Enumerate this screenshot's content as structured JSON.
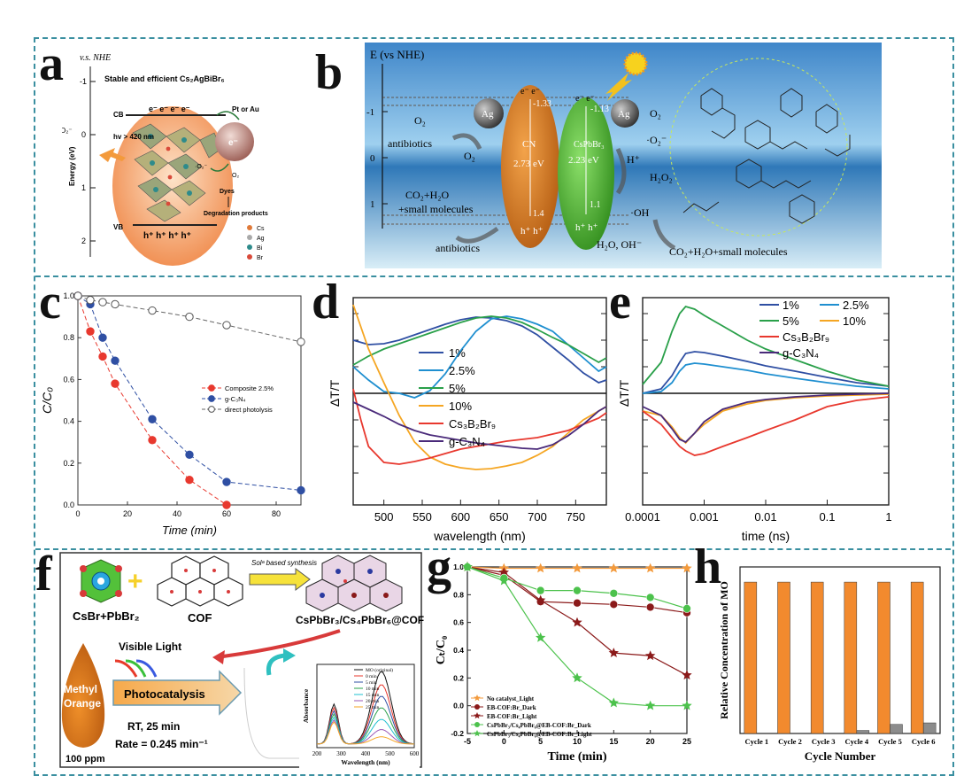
{
  "panel_labels": {
    "a": "a",
    "b": "b",
    "c": "c",
    "d": "d",
    "e": "e",
    "f": "f",
    "g": "g",
    "h": "h"
  },
  "panel_a": {
    "axis_title": "v.s. NHE",
    "ylabel": "Energy (eV)",
    "ticks": [
      "-1",
      "0",
      "1",
      "2"
    ],
    "title": "Stable and efficient Cs₂AgBiBr₆",
    "cb": "CB",
    "vb": "VB",
    "electrons": "e⁻ e⁻ e⁻ e⁻",
    "holes": "h⁺ h⁺ h⁺ h⁺",
    "o2_label": "O₂→·O₂⁻",
    "hv": "hv > 420 nm",
    "metal": "Pt or Au",
    "e_label": "e⁻",
    "o2_small": "·O₂⁻",
    "o2_sub": "O₂",
    "dyes": "Dyes",
    "products": "Degradation products",
    "legend": [
      "Cs",
      "Ag",
      "Bi",
      "Br"
    ],
    "legend_colors": [
      "#e07a3a",
      "#a9a9a9",
      "#2e8b8b",
      "#d94a3a"
    ]
  },
  "panel_b": {
    "axis_title": "E (vs NHE)",
    "ticks": [
      "-1",
      "0",
      "1"
    ],
    "o2_left": "O₂",
    "antibiotics1": "antibiotics",
    "o2_mid": "O₂",
    "co2": "CO₂+H₂O",
    "small_molecules": "+small molecules",
    "antibiotics2": "antibiotics",
    "ag": "Ag",
    "cn_label": "CN",
    "cn_gap": "2.73 eV",
    "cn_cb": "-1.33",
    "cn_vb": "1.4",
    "cs_label": "CsPbBr₃",
    "cs_gap": "2.23 eV",
    "cs_cb": "-1.13",
    "cs_vb": "1.1",
    "radical": "·O₂⁻",
    "h_plus": "H⁺",
    "h2o2": "H₂O₂",
    "oh": "·OH",
    "h2o_oh": "H₂O, OH⁻",
    "products": "CO₂+H₂O+small molecules",
    "e_minus": "e⁻",
    "h_plus_sym": "h⁺"
  },
  "chart_data": [
    {
      "panel": "c",
      "type": "line",
      "xlabel": "Time (min)",
      "ylabel": "C/C₀",
      "xlim": [
        0,
        90
      ],
      "ylim": [
        0,
        1.0
      ],
      "xticks": [
        0,
        20,
        40,
        60,
        80
      ],
      "yticks": [
        0.0,
        0.2,
        0.4,
        0.6,
        0.8,
        1.0
      ],
      "legend_position": "middle-right",
      "series": [
        {
          "name": "Composite 2.5%",
          "color": "#e8382e",
          "x": [
            0,
            5,
            10,
            15,
            30,
            45,
            60
          ],
          "y": [
            1.0,
            0.83,
            0.71,
            0.58,
            0.31,
            0.12,
            0.0
          ]
        },
        {
          "name": "g-C₃N₄",
          "color": "#2f4fa3",
          "x": [
            0,
            5,
            10,
            15,
            30,
            45,
            60,
            90
          ],
          "y": [
            1.0,
            0.96,
            0.8,
            0.69,
            0.41,
            0.24,
            0.11,
            0.07
          ]
        },
        {
          "name": "direct photolysis",
          "color": "#666666",
          "x": [
            0,
            5,
            10,
            15,
            30,
            45,
            60,
            90
          ],
          "y": [
            1.0,
            0.98,
            0.97,
            0.96,
            0.93,
            0.9,
            0.86,
            0.78
          ]
        }
      ]
    },
    {
      "panel": "d",
      "type": "line",
      "xlabel": "wavelength (nm)",
      "ylabel": "ΔT/T",
      "xlim": [
        460,
        790
      ],
      "xticks": [
        500,
        550,
        600,
        650,
        700,
        750
      ],
      "legend_position": "center",
      "series": [
        {
          "name": "1%",
          "color": "#2f4fa3",
          "x": [
            460,
            480,
            500,
            520,
            540,
            560,
            580,
            600,
            620,
            640,
            660,
            680,
            700,
            720,
            740,
            760,
            780,
            790
          ],
          "y": [
            0.6,
            0.55,
            0.56,
            0.6,
            0.66,
            0.72,
            0.78,
            0.83,
            0.86,
            0.85,
            0.82,
            0.76,
            0.66,
            0.52,
            0.38,
            0.23,
            0.12,
            0.15
          ]
        },
        {
          "name": "2.5%",
          "color": "#1f8fd0",
          "x": [
            460,
            480,
            500,
            520,
            540,
            560,
            580,
            600,
            620,
            640,
            660,
            680,
            700,
            720,
            740,
            760,
            780,
            790
          ],
          "y": [
            0.3,
            0.15,
            0.02,
            0.0,
            -0.05,
            0.03,
            0.22,
            0.48,
            0.7,
            0.84,
            0.87,
            0.84,
            0.78,
            0.7,
            0.55,
            0.4,
            0.25,
            0.3
          ]
        },
        {
          "name": "5%",
          "color": "#2aa04a",
          "x": [
            460,
            480,
            500,
            520,
            540,
            560,
            580,
            600,
            620,
            640,
            660,
            680,
            700,
            720,
            740,
            760,
            780,
            790
          ],
          "y": [
            0.32,
            0.42,
            0.5,
            0.56,
            0.62,
            0.68,
            0.74,
            0.8,
            0.85,
            0.87,
            0.85,
            0.8,
            0.72,
            0.63,
            0.55,
            0.45,
            0.35,
            0.4
          ]
        },
        {
          "name": "10%",
          "color": "#f5a623",
          "x": [
            460,
            470,
            480,
            500,
            520,
            540,
            560,
            580,
            600,
            620,
            640,
            660,
            680,
            700,
            720,
            740,
            760,
            780,
            790
          ],
          "y": [
            1.0,
            0.75,
            0.5,
            0.12,
            -0.25,
            -0.55,
            -0.72,
            -0.8,
            -0.84,
            -0.86,
            -0.85,
            -0.82,
            -0.78,
            -0.7,
            -0.6,
            -0.45,
            -0.3,
            -0.2,
            -0.15
          ]
        },
        {
          "name": "Cs₃B₂Br₉",
          "color": "#e8382e",
          "x": [
            460,
            470,
            480,
            500,
            520,
            540,
            560,
            580,
            600,
            620,
            640,
            660,
            680,
            700,
            720,
            740,
            760,
            780,
            790
          ],
          "y": [
            0.05,
            -0.3,
            -0.6,
            -0.78,
            -0.8,
            -0.77,
            -0.73,
            -0.68,
            -0.63,
            -0.6,
            -0.57,
            -0.54,
            -0.52,
            -0.5,
            -0.46,
            -0.42,
            -0.35,
            -0.28,
            -0.22
          ]
        },
        {
          "name": "g-C₃N₄",
          "color": "#4a2a7a",
          "x": [
            460,
            480,
            500,
            520,
            540,
            560,
            580,
            600,
            620,
            640,
            660,
            680,
            700,
            720,
            740,
            760,
            780,
            790
          ],
          "y": [
            -0.1,
            -0.18,
            -0.26,
            -0.35,
            -0.42,
            -0.47,
            -0.5,
            -0.53,
            -0.56,
            -0.58,
            -0.6,
            -0.62,
            -0.63,
            -0.58,
            -0.48,
            -0.35,
            -0.2,
            -0.15
          ]
        }
      ]
    },
    {
      "panel": "e",
      "type": "line",
      "xlabel": "time (ns)",
      "ylabel": "ΔT/T",
      "xscale": "log",
      "xlim": [
        0.0001,
        1
      ],
      "xtick_labels": [
        "0.0001",
        "0.001",
        "0.01",
        "0.1",
        "1"
      ],
      "legend_position": "top",
      "series": [
        {
          "name": "1%",
          "color": "#2f4fa3",
          "x": [
            0.0001,
            0.0002,
            0.0003,
            0.0004,
            0.0005,
            0.0007,
            0.001,
            0.002,
            0.005,
            0.01,
            0.03,
            0.1,
            0.3,
            1
          ],
          "y": [
            0.0,
            0.05,
            0.2,
            0.35,
            0.45,
            0.47,
            0.46,
            0.42,
            0.36,
            0.31,
            0.25,
            0.18,
            0.12,
            0.08
          ]
        },
        {
          "name": "2.5%",
          "color": "#1f8fd0",
          "x": [
            0.0001,
            0.0002,
            0.0003,
            0.0004,
            0.0005,
            0.0007,
            0.001,
            0.002,
            0.005,
            0.01,
            0.03,
            0.1,
            0.3,
            1
          ],
          "y": [
            0.0,
            0.02,
            0.12,
            0.25,
            0.32,
            0.34,
            0.33,
            0.3,
            0.26,
            0.22,
            0.17,
            0.12,
            0.08,
            0.05
          ]
        },
        {
          "name": "5%",
          "color": "#2aa04a",
          "x": [
            0.0001,
            0.0002,
            0.0003,
            0.0004,
            0.0005,
            0.0007,
            0.001,
            0.002,
            0.005,
            0.01,
            0.03,
            0.1,
            0.3,
            1
          ],
          "y": [
            0.1,
            0.35,
            0.7,
            0.9,
            0.98,
            0.95,
            0.88,
            0.76,
            0.6,
            0.5,
            0.38,
            0.25,
            0.15,
            0.08
          ]
        },
        {
          "name": "10%",
          "color": "#f5a623",
          "x": [
            0.0001,
            0.0002,
            0.0003,
            0.0004,
            0.0005,
            0.0007,
            0.001,
            0.002,
            0.005,
            0.01,
            0.03,
            0.1,
            0.3,
            1
          ],
          "y": [
            -0.2,
            -0.25,
            -0.38,
            -0.5,
            -0.56,
            -0.45,
            -0.35,
            -0.2,
            -0.12,
            -0.08,
            -0.05,
            -0.03,
            -0.02,
            -0.01
          ]
        },
        {
          "name": "Cs₃B₂Br₉",
          "color": "#e8382e",
          "x": [
            0.0001,
            0.0002,
            0.0003,
            0.0004,
            0.0005,
            0.0007,
            0.001,
            0.002,
            0.005,
            0.01,
            0.03,
            0.1,
            0.3,
            1
          ],
          "y": [
            -0.2,
            -0.35,
            -0.5,
            -0.6,
            -0.65,
            -0.7,
            -0.68,
            -0.6,
            -0.5,
            -0.42,
            -0.3,
            -0.15,
            -0.08,
            -0.04
          ]
        },
        {
          "name": "g-C₃N₄",
          "color": "#4a2a7a",
          "x": [
            0.0001,
            0.0002,
            0.0003,
            0.0004,
            0.0005,
            0.0007,
            0.001,
            0.002,
            0.005,
            0.01,
            0.03,
            0.1,
            0.3,
            1
          ],
          "y": [
            -0.15,
            -0.25,
            -0.4,
            -0.52,
            -0.55,
            -0.45,
            -0.32,
            -0.18,
            -0.1,
            -0.07,
            -0.04,
            -0.02,
            -0.01,
            0.0
          ]
        }
      ]
    },
    {
      "panel": "g",
      "type": "line",
      "xlabel": "Time (min)",
      "ylabel": "Cₜ/C₀",
      "xlim": [
        -5,
        25
      ],
      "ylim": [
        -0.2,
        1.0
      ],
      "xticks": [
        -5,
        0,
        5,
        10,
        15,
        20,
        25
      ],
      "yticks": [
        -0.2,
        0.0,
        0.2,
        0.4,
        0.6,
        0.8,
        1.0
      ],
      "legend_position": "bottom-left",
      "series": [
        {
          "name": "No catalyst_Light",
          "color": "#f39a3c",
          "marker": "star",
          "x": [
            -5,
            0,
            5,
            10,
            15,
            20,
            25
          ],
          "y": [
            1.0,
            0.99,
            0.99,
            0.99,
            0.99,
            0.99,
            0.99
          ]
        },
        {
          "name": "EB-COF:Br_Dark",
          "color": "#8b1a1a",
          "marker": "circle",
          "x": [
            -5,
            0,
            5,
            10,
            15,
            20,
            25
          ],
          "y": [
            1.0,
            0.94,
            0.75,
            0.74,
            0.73,
            0.71,
            0.67
          ]
        },
        {
          "name": "EB-COF:Br_Light",
          "color": "#8b1a1a",
          "marker": "star",
          "x": [
            -5,
            0,
            5,
            10,
            15,
            20,
            25
          ],
          "y": [
            1.0,
            0.96,
            0.76,
            0.6,
            0.38,
            0.36,
            0.22
          ]
        },
        {
          "name": "CsPbBr₃/Cs₄PbBr₆@EB-COF:Br_Dark",
          "color": "#4cc24c",
          "marker": "circle",
          "x": [
            -5,
            0,
            5,
            10,
            15,
            20,
            25
          ],
          "y": [
            1.0,
            0.92,
            0.83,
            0.83,
            0.81,
            0.78,
            0.7
          ]
        },
        {
          "name": "CsPbBr₃/Cs₄PbBr₆@EB-COF:Br_Light",
          "color": "#4cc24c",
          "marker": "star",
          "x": [
            -5,
            0,
            5,
            10,
            15,
            20,
            25
          ],
          "y": [
            1.0,
            0.9,
            0.49,
            0.2,
            0.02,
            0.0,
            0.0
          ]
        }
      ]
    },
    {
      "panel": "h",
      "type": "bar",
      "xlabel": "Cycle Number",
      "ylabel": "Relative Concentration of MO",
      "categories": [
        "Cycle 1",
        "Cycle 2",
        "Cycle 3",
        "Cycle 4",
        "Cycle 5",
        "Cycle 6"
      ],
      "series": [
        {
          "color": "#f28a2e",
          "values": [
            1.0,
            1.0,
            1.0,
            1.0,
            1.0,
            1.0
          ]
        },
        {
          "color": "#8c8c8c",
          "values": [
            0.0,
            0.0,
            0.0,
            0.02,
            0.06,
            0.07
          ]
        }
      ],
      "ylim": [
        0,
        1.1
      ]
    }
  ],
  "panel_f": {
    "precursor": "CsBr+PbBr₂",
    "cof": "COF",
    "synthesis": "Solᵃ based synthesis",
    "product": "CsPbBr₃/Cs₄PbBr₆@COF",
    "visible_light": "Visible Light",
    "methyl": "Methyl",
    "orange": "Orange",
    "ppm": "100 ppm",
    "photocatalysis": "Photocatalysis",
    "rt": "RT, 25 min",
    "rate": "Rate = 0.245 min⁻¹",
    "inset_ylabel": "Absorbance",
    "inset_xlabel": "Wavelength (nm)",
    "inset_xticks": [
      "200",
      "300",
      "400",
      "500",
      "600"
    ],
    "inset_legend": [
      "MO (original)",
      "0 min",
      "5 min",
      "10 min",
      "15 min",
      "20 min",
      "25 min"
    ],
    "inset_colors": [
      "#111111",
      "#e8382e",
      "#2f4fa3",
      "#2aa04a",
      "#1fc0d0",
      "#9b59b6",
      "#f5a623"
    ]
  }
}
